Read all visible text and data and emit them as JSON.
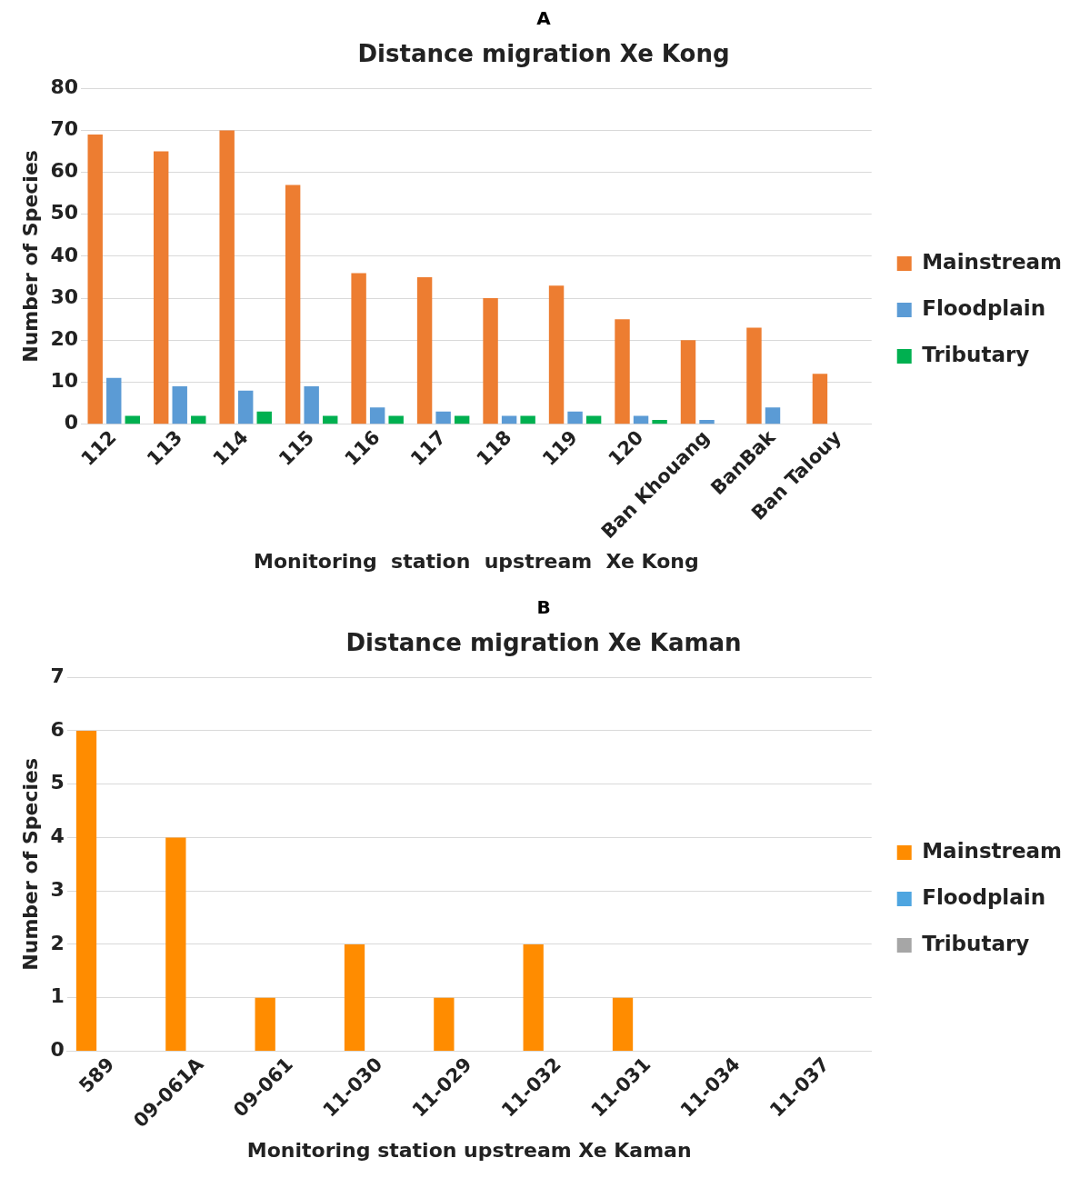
{
  "chart_data": [
    {
      "type": "bar",
      "title": "Distance migration Xe Kong",
      "xlabel": "Monitoring  station  upstream  Xe Kong",
      "ylabel": "Number of Species",
      "annotations": [
        "A"
      ],
      "categories": [
        "112",
        "113",
        "114",
        "115",
        "116",
        "117",
        "118",
        "119",
        "120",
        "Ban Khouang",
        "BanBak",
        "Ban Talouy"
      ],
      "series": [
        {
          "name": "Mainstream",
          "color": "#ed7d31",
          "values": [
            69,
            65,
            70,
            57,
            36,
            35,
            30,
            33,
            25,
            20,
            23,
            12
          ]
        },
        {
          "name": "Floodplain",
          "color": "#5b9bd5",
          "values": [
            11,
            9,
            8,
            9,
            4,
            3,
            2,
            3,
            2,
            1,
            4,
            0
          ]
        },
        {
          "name": "Tributary",
          "color": "#00b050",
          "values": [
            2,
            2,
            3,
            2,
            2,
            2,
            2,
            2,
            1,
            0,
            0,
            0
          ]
        }
      ],
      "ylim": [
        0,
        80
      ],
      "yticks": [
        0,
        10,
        20,
        30,
        40,
        50,
        60,
        70,
        80
      ],
      "grid": "y",
      "legend": "right"
    },
    {
      "type": "bar",
      "title": "Distance migration Xe Kaman",
      "xlabel": "Monitoring station upstream Xe Kaman",
      "ylabel": "Number of Species",
      "annotations": [
        "B"
      ],
      "categories": [
        "589",
        "09-061A",
        "09-061",
        "11-030",
        "11-029",
        "11-032",
        "11-031",
        "11-034",
        "11-037"
      ],
      "series": [
        {
          "name": "Mainstream",
          "color": "#ff8c00",
          "values": [
            6,
            4,
            1,
            2,
            1,
            2,
            1,
            0,
            0
          ]
        },
        {
          "name": "Floodplain",
          "color": "#4ea5e0",
          "values": [
            0,
            0,
            0,
            0,
            0,
            0,
            0,
            0,
            0
          ]
        },
        {
          "name": "Tributary",
          "color": "#a6a6a6",
          "values": [
            0,
            0,
            0,
            0,
            0,
            0,
            0,
            0,
            0
          ]
        }
      ],
      "ylim": [
        0,
        7
      ],
      "yticks": [
        0,
        1,
        2,
        3,
        4,
        5,
        6,
        7
      ],
      "grid": "y",
      "legend": "right"
    }
  ]
}
